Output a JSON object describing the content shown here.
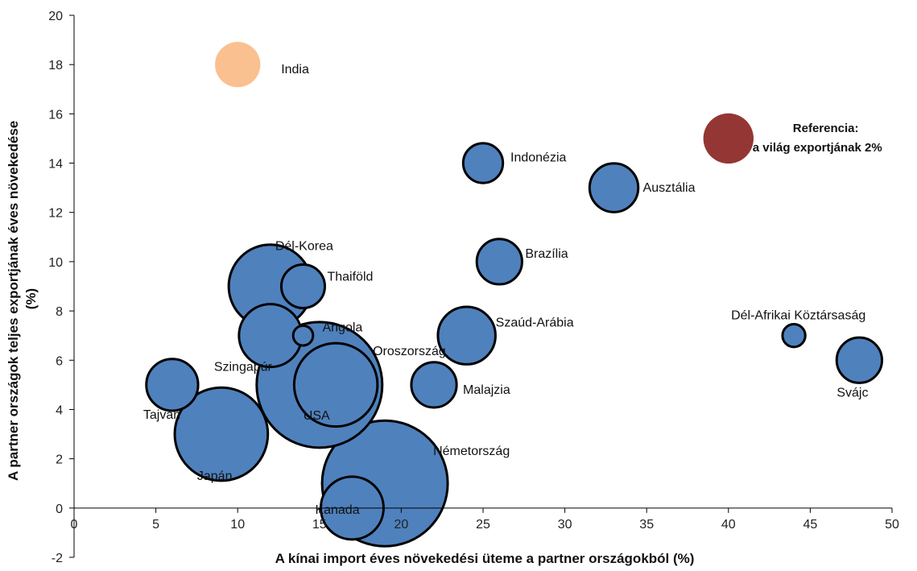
{
  "chart_data": {
    "type": "scatter",
    "variant": "bubble",
    "xlabel": "A kínai import éves növekedési üteme a partner országokból (%)",
    "ylabel": [
      "A partner országok teljes exportjának éves növekedése",
      "(%)"
    ],
    "xlim": [
      0,
      50
    ],
    "ylim": [
      -2,
      20
    ],
    "x_ticks": [
      0,
      5,
      10,
      15,
      20,
      25,
      30,
      35,
      40,
      45,
      50
    ],
    "y_ticks": [
      -2,
      0,
      2,
      4,
      6,
      8,
      10,
      12,
      14,
      16,
      18,
      20
    ],
    "grid": false,
    "colors": {
      "default": "#4f81bd",
      "india": "#fac090",
      "reference": "#943634"
    },
    "reference_label": [
      "Referencia:",
      "a világ exportjának 2%"
    ],
    "points": [
      {
        "name": "Németország",
        "x": 19,
        "y": 1,
        "size": 100,
        "color": "default"
      },
      {
        "name": "USA",
        "x": 15,
        "y": 5,
        "size": 100,
        "color": "default"
      },
      {
        "name": "Japán",
        "x": 9,
        "y": 3,
        "size": 55,
        "color": "default"
      },
      {
        "name": "Dél-Korea",
        "x": 12,
        "y": 9,
        "size": 44,
        "color": "default"
      },
      {
        "name": "Oroszország",
        "x": 16,
        "y": 5,
        "size": 44,
        "color": "default"
      },
      {
        "name": "Kanada",
        "x": 17,
        "y": 0,
        "size": 25,
        "color": "default"
      },
      {
        "name": "Szingapúr",
        "x": 12,
        "y": 7,
        "size": 25,
        "color": "default"
      },
      {
        "name": "Szaúd-Arábia",
        "x": 24,
        "y": 7,
        "size": 21,
        "color": "default"
      },
      {
        "name": "Tajván",
        "x": 6,
        "y": 5,
        "size": 17,
        "color": "default"
      },
      {
        "name": "Ausztália",
        "x": 33,
        "y": 13,
        "size": 15,
        "color": "default"
      },
      {
        "name": "Malajzia",
        "x": 22,
        "y": 5,
        "size": 13,
        "color": "default"
      },
      {
        "name": "Brazília",
        "x": 26,
        "y": 10,
        "size": 13,
        "color": "default"
      },
      {
        "name": "Svájc",
        "x": 48,
        "y": 6,
        "size": 13,
        "color": "default"
      },
      {
        "name": "Thaiföld",
        "x": 14,
        "y": 9,
        "size": 12,
        "color": "default"
      },
      {
        "name": "India",
        "x": 10,
        "y": 18,
        "size": 13,
        "color": "india"
      },
      {
        "name": "Indonézia",
        "x": 25,
        "y": 14,
        "size": 10,
        "color": "default"
      },
      {
        "name": "Dél-Afrikai Köztársaság",
        "x": 44,
        "y": 7,
        "size": 3.3,
        "color": "default"
      },
      {
        "name": "Angola",
        "x": 14,
        "y": 7,
        "size": 2.5,
        "color": "default"
      },
      {
        "name": "Referencia",
        "x": 40,
        "y": 15,
        "size": 16,
        "color": "reference"
      }
    ]
  }
}
